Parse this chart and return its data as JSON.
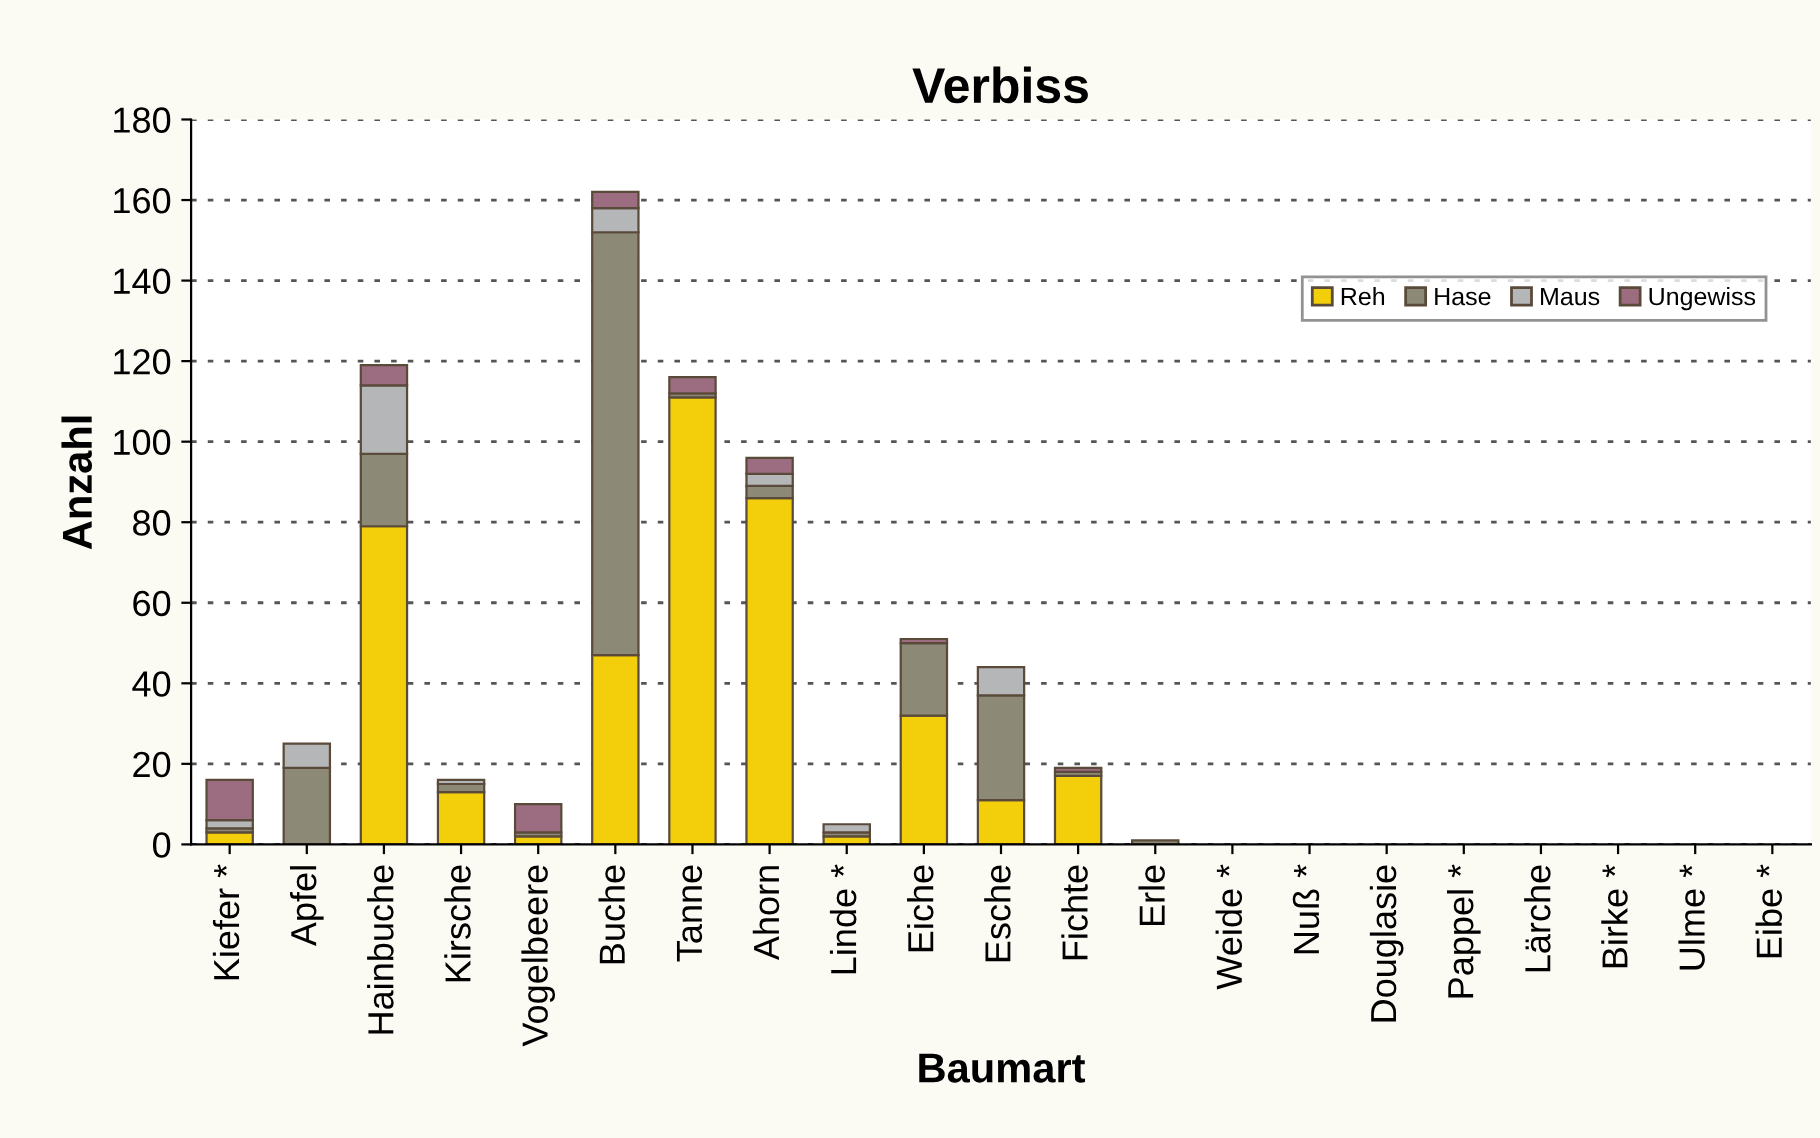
{
  "chart_data": {
    "type": "bar",
    "title": "Verbiss",
    "xlabel": "Baumart",
    "ylabel": "Anzahl",
    "stacked": true,
    "grid": "y",
    "legend": "top right",
    "categories": [
      "Kiefer *",
      "Apfel",
      "Hainbuche",
      "Kirsche",
      "Vogelbeere",
      "Buche",
      "Tanne",
      "Ahorn",
      "Linde *",
      "Eiche",
      "Esche",
      "Fichte",
      "Erle",
      "Weide *",
      "Nuß *",
      "Douglasie",
      "Pappel *",
      "Lärche",
      "Birke *",
      "Ulme *",
      "Eibe *"
    ],
    "ylim": [
      0,
      180
    ],
    "yticks": [
      0,
      20,
      40,
      60,
      80,
      100,
      120,
      140,
      160,
      180
    ],
    "series": [
      {
        "name": "Reh",
        "color": "#f2cf0a",
        "values": [
          3,
          0,
          79,
          13,
          2,
          47,
          111,
          86,
          2,
          32,
          11,
          17,
          0,
          0,
          0,
          0,
          0,
          0,
          0,
          0,
          0
        ]
      },
      {
        "name": "Hase",
        "color": "#8c8a76",
        "values": [
          1,
          19,
          18,
          2,
          1,
          105,
          1,
          3,
          1,
          18,
          26,
          1,
          1,
          0,
          0,
          0,
          0,
          0,
          0,
          0,
          0
        ]
      },
      {
        "name": "Maus",
        "color": "#b4b6b8",
        "values": [
          2,
          6,
          17,
          1,
          0,
          6,
          0,
          3,
          2,
          0,
          7,
          0,
          0,
          0,
          0,
          0,
          0,
          0,
          0,
          0,
          0
        ]
      },
      {
        "name": "Ungewiss",
        "color": "#9c6d80",
        "values": [
          10,
          0,
          5,
          0,
          7,
          4,
          4,
          4,
          0,
          1,
          0,
          1,
          0,
          0,
          0,
          0,
          0,
          0,
          0,
          0,
          0
        ]
      }
    ]
  }
}
